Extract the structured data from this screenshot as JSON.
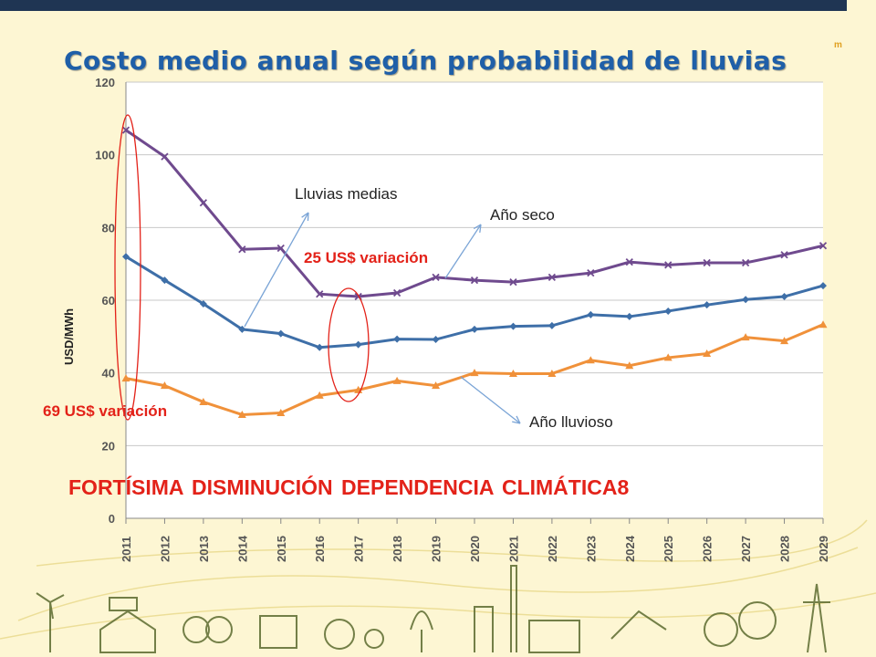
{
  "title": "Costo medio anual según probabilidad de lluvias",
  "side_mark": "m",
  "annotations": {
    "lluvias_medias": "Lluvias medias",
    "ano_seco": "Año seco",
    "ano_lluvioso": "Año lluvioso",
    "variacion_25": "25 US$ variación",
    "variacion_69": "69 US$ variación",
    "headline": "FORTÍSIMA DISMINUCIÓN DEPENDENCIA CLIMÁTICA8"
  },
  "colors": {
    "seco": "#6f4a8e",
    "medias": "#3e6fa8",
    "lluvioso": "#f0913a",
    "title": "#1f5fa8",
    "highlight": "#e32219"
  },
  "chart_data": {
    "type": "line",
    "ylabel": "USD/MWh",
    "ylim": [
      0,
      120
    ],
    "yticks": [
      0,
      20,
      40,
      60,
      80,
      100,
      120
    ],
    "grid": true,
    "x": [
      "2011",
      "2012",
      "2013",
      "2014",
      "2015",
      "2016",
      "2017",
      "2018",
      "2019",
      "2020",
      "2021",
      "2022",
      "2023",
      "2024",
      "2025",
      "2026",
      "2027",
      "2028",
      "2029"
    ],
    "series": [
      {
        "key": "seco",
        "values": [
          106.8,
          99.5,
          86.8,
          74,
          74.3,
          61.7,
          61,
          62,
          66.3,
          65.5,
          65,
          66.3,
          67.5,
          70.5,
          69.7,
          70.3,
          70.3,
          72.5,
          75
        ]
      },
      {
        "key": "medias",
        "values": [
          72,
          65.5,
          59,
          52,
          50.8,
          47,
          47.8,
          49.3,
          49.2,
          52,
          52.8,
          53,
          56,
          55.5,
          57,
          58.7,
          60.2,
          61,
          64
        ]
      },
      {
        "key": "lluvioso",
        "values": [
          38.5,
          36.5,
          32,
          28.5,
          29,
          33.8,
          35.3,
          37.8,
          36.5,
          40,
          39.8,
          39.8,
          43.5,
          42,
          44.2,
          45.3,
          49.8,
          48.8,
          53.3
        ]
      }
    ]
  }
}
